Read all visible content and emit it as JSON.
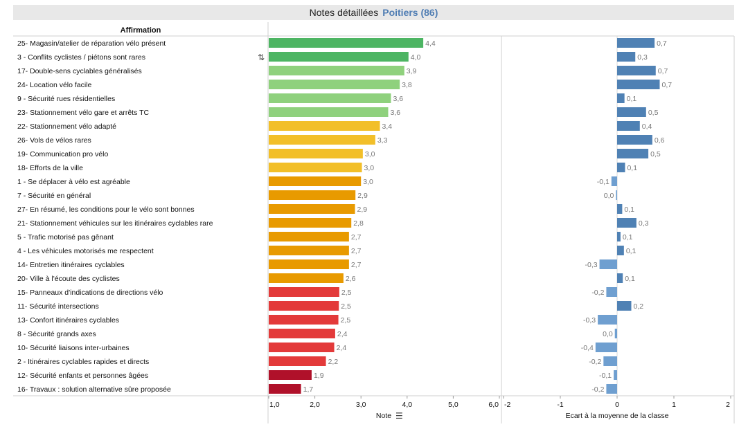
{
  "header": {
    "title": "Notes détaillées",
    "subtitle": "Poitiers (86)"
  },
  "table": {
    "column_header": "Affirmation"
  },
  "icons": {
    "sort_row": "sort-icon",
    "sort_axis": "sort-descending-icon"
  },
  "colors": {
    "dark_green": "#4db563",
    "light_green": "#8fd17d",
    "yellow": "#f2bf29",
    "orange": "#e89a00",
    "red": "#e33a3a",
    "dark_red": "#b0112a",
    "blue_pos": "#4f81b4",
    "blue_neg": "#6f9fd0"
  },
  "chart_data": [
    {
      "type": "bar",
      "orientation": "horizontal",
      "xlabel": "Note",
      "xlim": [
        1,
        6
      ],
      "ticks": [
        "1,0",
        "2,0",
        "3,0",
        "4,0",
        "5,0",
        "6,0"
      ],
      "categories": [
        "25- Magasin/atelier de réparation vélo présent",
        "3 - Conflits cyclistes / piétons sont rares",
        "17- Double-sens cyclables généralisés",
        "24- Location vélo facile",
        "9 - Sécurité rues résidentielles",
        "23- Stationnement vélo gare et arrêts TC",
        "22- Stationnement vélo adapté",
        "26- Vols de vélos rares",
        "19- Communication pro vélo",
        "18- Efforts de la ville",
        "1 - Se déplacer à vélo est agréable",
        "7 - Sécurité en général",
        "27- En résumé, les conditions pour le vélo sont bonnes",
        "21- Stationnement véhicules sur les itinéraires cyclables rare",
        "5 - Trafic motorisé pas gênant",
        "4 - Les véhicules motorisés me respectent",
        "14- Entretien itinéraires cyclables",
        "20- Ville à l'écoute des cyclistes",
        "15- Panneaux d'indications de directions vélo",
        "11- Sécurité intersections",
        "13- Confort itinéraires cyclables",
        "8 - Sécurité grands axes",
        "10- Sécurité liaisons inter-urbaines",
        "2 - Itinéraires cyclables rapides et directs",
        "12- Sécurité enfants et personnes âgées",
        "16- Travaux : solution alternative sûre proposée"
      ],
      "values": [
        4.35,
        4.03,
        3.94,
        3.84,
        3.65,
        3.59,
        3.41,
        3.31,
        3.04,
        3.02,
        3.0,
        2.88,
        2.87,
        2.79,
        2.74,
        2.74,
        2.74,
        2.62,
        2.53,
        2.52,
        2.51,
        2.44,
        2.42,
        2.24,
        1.93,
        1.7
      ],
      "labels": [
        "4,4",
        "4,0",
        "3,9",
        "3,8",
        "3,6",
        "3,6",
        "3,4",
        "3,3",
        "3,0",
        "3,0",
        "3,0",
        "2,9",
        "2,9",
        "2,8",
        "2,7",
        "2,7",
        "2,7",
        "2,6",
        "2,5",
        "2,5",
        "2,5",
        "2,4",
        "2,4",
        "2,2",
        "1,9",
        "1,7"
      ],
      "color_groups": [
        "dark_green",
        "dark_green",
        "light_green",
        "light_green",
        "light_green",
        "light_green",
        "yellow",
        "yellow",
        "yellow",
        "yellow",
        "orange",
        "orange",
        "orange",
        "orange",
        "orange",
        "orange",
        "orange",
        "orange",
        "red",
        "red",
        "red",
        "red",
        "red",
        "red",
        "dark_red",
        "dark_red"
      ]
    },
    {
      "type": "bar",
      "orientation": "horizontal",
      "xlabel": "Ecart à la moyenne de la classe",
      "xlim": [
        -2,
        2
      ],
      "ticks": [
        "-2",
        "-1",
        "0",
        "1",
        "2"
      ],
      "values": [
        0.66,
        0.32,
        0.68,
        0.75,
        0.13,
        0.51,
        0.4,
        0.62,
        0.55,
        0.14,
        -0.1,
        -0.02,
        0.09,
        0.34,
        0.06,
        0.12,
        -0.31,
        0.1,
        -0.19,
        0.25,
        -0.34,
        -0.04,
        -0.38,
        -0.24,
        -0.06,
        -0.19
      ],
      "labels": [
        "0,7",
        "0,3",
        "0,7",
        "0,7",
        "0,1",
        "0,5",
        "0,4",
        "0,6",
        "0,5",
        "0,1",
        "-0,1",
        "0,0",
        "0,1",
        "0,3",
        "0,1",
        "0,1",
        "-0,3",
        "0,1",
        "-0,2",
        "0,2",
        "-0,3",
        "0,0",
        "-0,4",
        "-0,2",
        "-0,1",
        "-0,2"
      ]
    }
  ]
}
